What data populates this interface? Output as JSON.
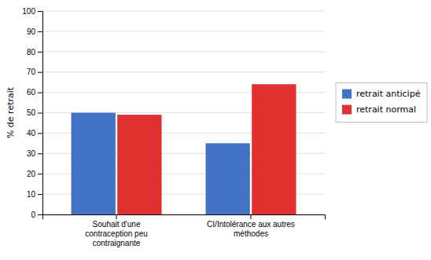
{
  "chart_data": {
    "type": "bar",
    "categories": [
      "Souhait d'une\ncontraception peu\ncontraignante",
      "CI/Intolérance aux autres\nméthodes"
    ],
    "series": [
      {
        "name": "retrait anticipé",
        "color": "#4472C4",
        "values": [
          50,
          35
        ]
      },
      {
        "name": "retrait normal",
        "color": "#E03030",
        "values": [
          49,
          64
        ]
      }
    ],
    "ylabel": "% de retrait",
    "ylim": [
      0,
      100
    ],
    "yticks": [
      0,
      10,
      20,
      30,
      40,
      50,
      60,
      70,
      80,
      90,
      100
    ],
    "grid": true,
    "legend": "right"
  }
}
